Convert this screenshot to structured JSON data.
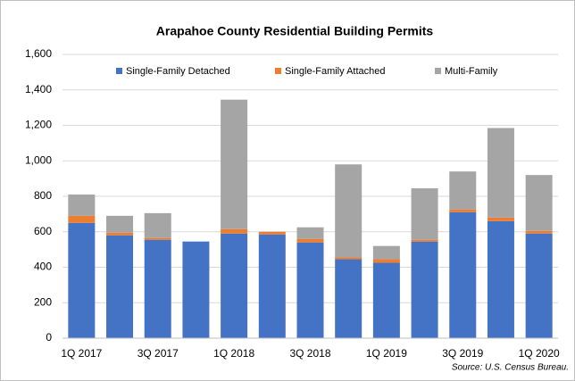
{
  "chart_data": {
    "type": "stacked-bar",
    "title": "Arapahoe County Residential Building Permits",
    "categories": [
      "1Q 2017",
      null,
      "3Q 2017",
      null,
      "1Q 2018",
      null,
      "3Q 2018",
      null,
      "1Q 2019",
      null,
      "3Q 2019",
      null,
      "1Q 2020"
    ],
    "series": [
      {
        "name": "Single-Family Detached",
        "color": "#4472c4",
        "values": [
          650,
          580,
          555,
          545,
          590,
          585,
          540,
          445,
          425,
          545,
          710,
          660,
          590
        ]
      },
      {
        "name": "Single-Family Attached",
        "color": "#ed7d31",
        "values": [
          40,
          15,
          10,
          0,
          25,
          15,
          20,
          10,
          20,
          10,
          15,
          20,
          15
        ]
      },
      {
        "name": "Multi-Family",
        "color": "#a5a5a5",
        "values": [
          120,
          95,
          140,
          0,
          730,
          0,
          65,
          525,
          75,
          290,
          215,
          505,
          315
        ]
      }
    ],
    "ylim": [
      0,
      1600
    ],
    "yticks": [
      0,
      200,
      400,
      600,
      800,
      {
        "value": 1000,
        "label": "1,000"
      },
      {
        "value": 1200,
        "label": "1,200"
      },
      {
        "value": 1400,
        "label": "1,400"
      },
      {
        "value": 1600,
        "label": "1,600"
      }
    ],
    "grid": true,
    "legend": "top",
    "source": "Source: U.S. Census Bureau."
  }
}
